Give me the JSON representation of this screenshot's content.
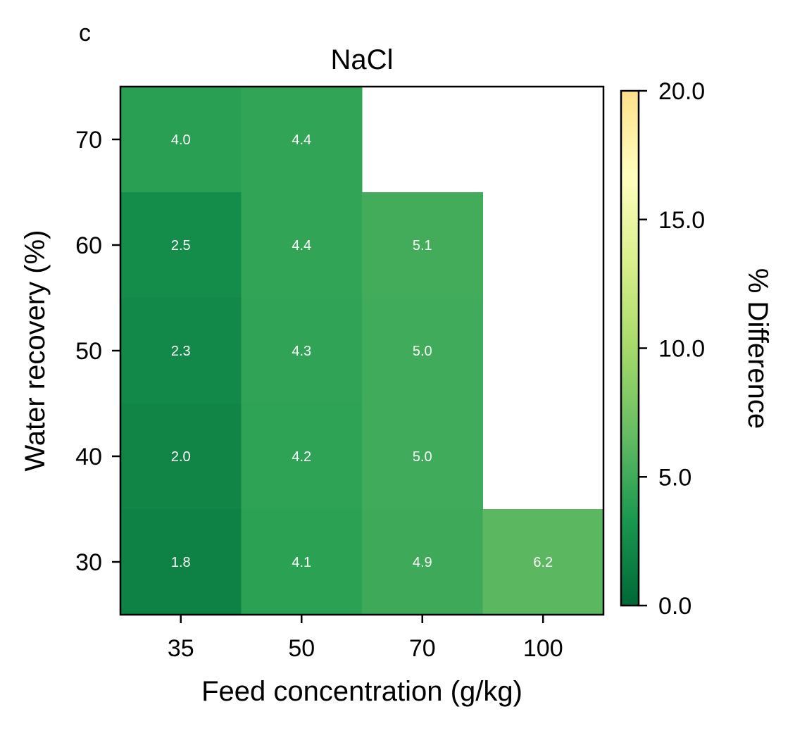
{
  "panel_label": "c",
  "chart_data": {
    "type": "heatmap",
    "title": "NaCl",
    "xlabel": "Feed concentration (g/kg)",
    "ylabel": "Water recovery (%)",
    "x_categories": [
      "35",
      "50",
      "70",
      "100"
    ],
    "y_categories": [
      "30",
      "40",
      "50",
      "60",
      "70"
    ],
    "cells": [
      {
        "x": "35",
        "y": "70",
        "value": 4.0,
        "label": "4.0"
      },
      {
        "x": "50",
        "y": "70",
        "value": 4.4,
        "label": "4.4"
      },
      {
        "x": "35",
        "y": "60",
        "value": 2.5,
        "label": "2.5"
      },
      {
        "x": "50",
        "y": "60",
        "value": 4.4,
        "label": "4.4"
      },
      {
        "x": "70",
        "y": "60",
        "value": 5.1,
        "label": "5.1"
      },
      {
        "x": "35",
        "y": "50",
        "value": 2.3,
        "label": "2.3"
      },
      {
        "x": "50",
        "y": "50",
        "value": 4.3,
        "label": "4.3"
      },
      {
        "x": "70",
        "y": "50",
        "value": 5.0,
        "label": "5.0"
      },
      {
        "x": "35",
        "y": "40",
        "value": 2.0,
        "label": "2.0"
      },
      {
        "x": "50",
        "y": "40",
        "value": 4.2,
        "label": "4.2"
      },
      {
        "x": "70",
        "y": "40",
        "value": 5.0,
        "label": "5.0"
      },
      {
        "x": "35",
        "y": "30",
        "value": 1.8,
        "label": "1.8"
      },
      {
        "x": "50",
        "y": "30",
        "value": 4.1,
        "label": "4.1"
      },
      {
        "x": "70",
        "y": "30",
        "value": 4.9,
        "label": "4.9"
      },
      {
        "x": "100",
        "y": "30",
        "value": 6.2,
        "label": "6.2"
      }
    ],
    "colorbar": {
      "label": "% Difference",
      "range": [
        0,
        20
      ],
      "ticks": [
        0,
        5,
        10,
        15,
        20
      ],
      "tick_labels": [
        "0.0",
        "5.0",
        "10.0",
        "15.0",
        "20.0"
      ],
      "colormap_stops": [
        "#006837",
        "#1a9850",
        "#66bd63",
        "#a6d96a",
        "#d9ef8b",
        "#ffffbf",
        "#fee08b"
      ]
    },
    "grid": false
  }
}
